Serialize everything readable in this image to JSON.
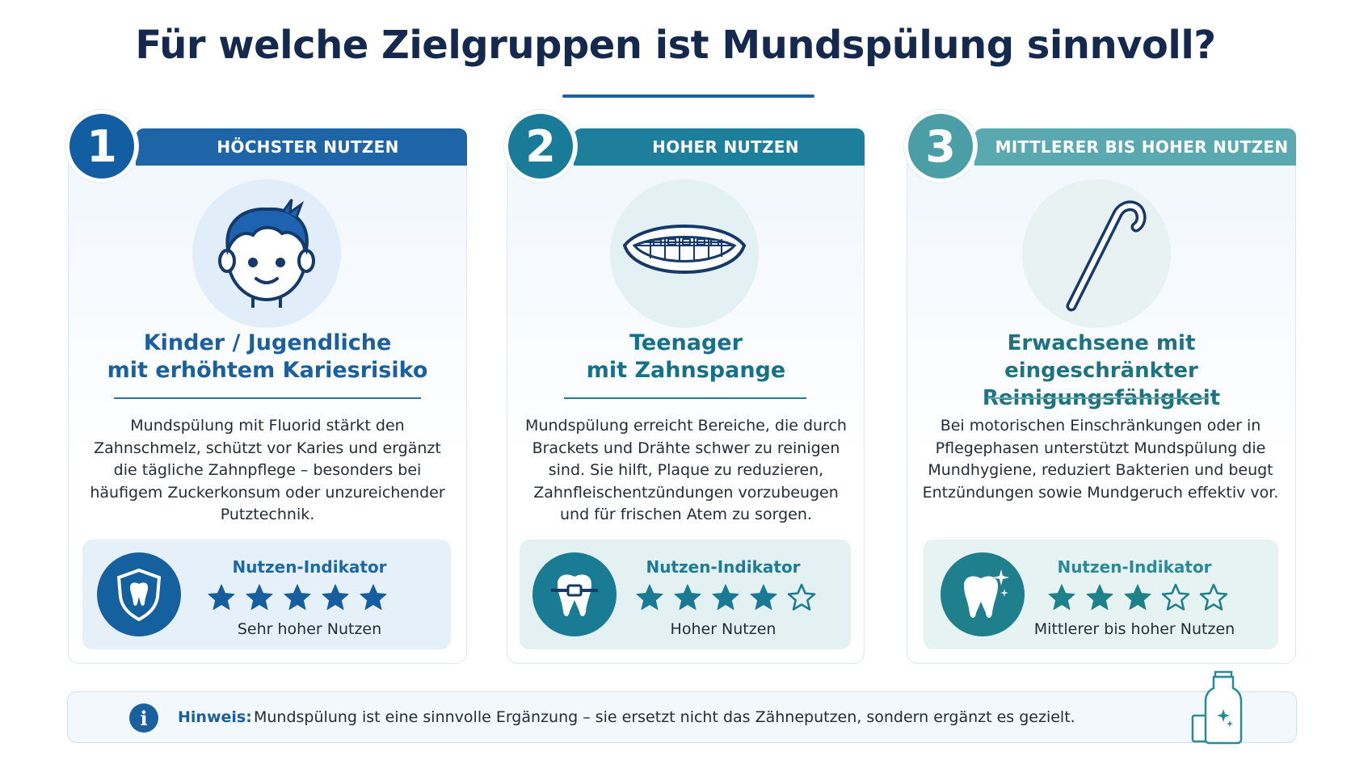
{
  "title": "Für welche Zielgruppen ist Mundspülung sinnvoll?",
  "cards": [
    {
      "number": "1",
      "banner": "HÖCHSTER NUTZEN",
      "category_line1": "Kinder / Jugendliche",
      "category_line2": "mit erhöhtem Kariesrisiko",
      "description": "Mundspülung mit Fluorid stärkt den Zahnschmelz, schützt vor Karies und ergänzt die tägliche Zahnpflege – besonders bei häufigem Zuckerkonsum oder unzureichender Putztechnik.",
      "indicator_title": "Nutzen-Indikator",
      "rating": 5,
      "rating_max": 5,
      "indicator_label": "Sehr hoher Nutzen",
      "illustration_icon": "child-face-icon",
      "indicator_icon": "shield-tooth-icon",
      "accent": "#1e65a7"
    },
    {
      "number": "2",
      "banner": "HOHER NUTZEN",
      "category_line1": "Teenager",
      "category_line2": "mit Zahnspange",
      "description": "Mundspülung erreicht Bereiche, die durch Brackets und Drähte schwer zu reinigen sind. Sie hilft, Plaque zu reduzieren, Zahnfleischentzündungen vorzubeugen und für frischen Atem zu sorgen.",
      "indicator_title": "Nutzen-Indikator",
      "rating": 4,
      "rating_max": 5,
      "indicator_label": "Hoher Nutzen",
      "illustration_icon": "braces-smile-icon",
      "indicator_icon": "tooth-bracket-icon",
      "accent": "#1d7f9b"
    },
    {
      "number": "3",
      "banner": "MITTLERER BIS HOHER NUTZEN",
      "category_line1": "Erwachsene mit",
      "category_line2": "eingeschränkter Reinigungsfähigkeit",
      "description": "Bei motorischen Einschränkungen oder in Pflegephasen unterstützt Mundspülung die Mundhygiene, reduziert Bakterien und beugt Entzündungen sowie Mundgeruch effektiv vor.",
      "indicator_title": "Nutzen-Indikator",
      "rating": 3,
      "rating_max": 5,
      "indicator_label": "Mittlerer bis hoher Nutzen",
      "illustration_icon": "cane-icon",
      "indicator_icon": "sparkling-tooth-icon",
      "accent": "#5aa9b0"
    }
  ],
  "note": {
    "label": "Hinweis:",
    "text": "Mundspülung ist eine sinnvolle Ergänzung – sie ersetzt nicht das Zähneputzen, sondern ergänzt es gezielt.",
    "icon": "info-icon",
    "decoration_icon": "mouthwash-bottle-icon"
  }
}
